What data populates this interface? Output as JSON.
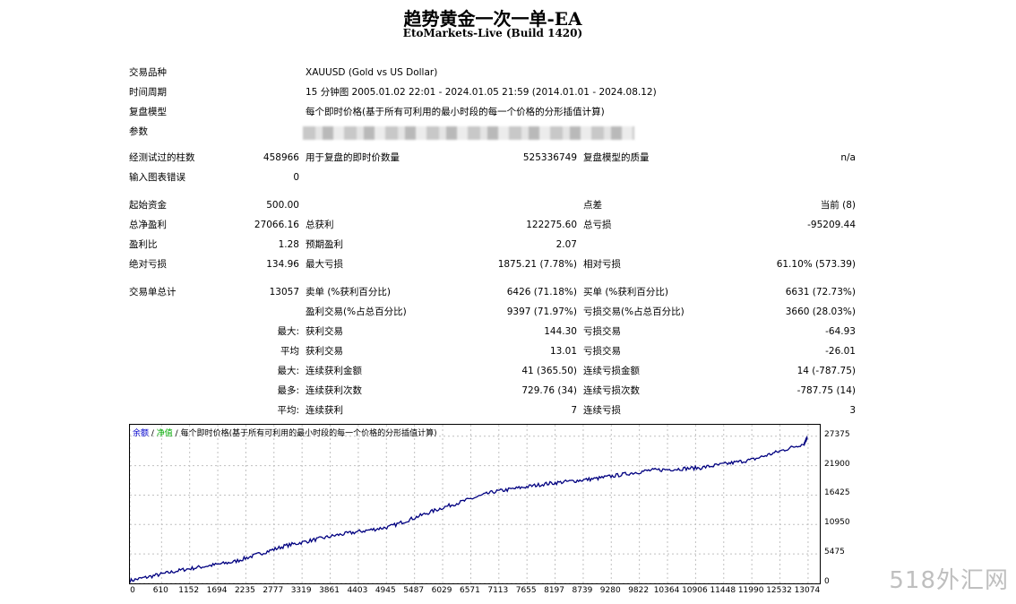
{
  "report": {
    "title": "趋势黄金一次一单-EA",
    "subtitle": "EtoMarkets-Live (Build 1420)"
  },
  "info": {
    "symbol_label": "交易品种",
    "symbol_value": "XAUUSD (Gold vs US Dollar)",
    "period_label": "时间周期",
    "period_value": "15 分钟图 2005.01.02 22:01 - 2024.01.05 21:59 (2014.01.01 - 2024.08.12)",
    "model_label": "复盘模型",
    "model_value": "每个即时价格(基于所有可利用的最小时段的每一个价格的分形插值计算)",
    "params_label": "参数"
  },
  "stats": {
    "bars_label": "经测试过的柱数",
    "bars_value": "458966",
    "ticks_label": "用于复盘的即时价数量",
    "ticks_value": "525336749",
    "quality_label": "复盘模型的质量",
    "quality_value": "n/a",
    "errors_label": "输入图表错误",
    "errors_value": "0",
    "deposit_label": "起始资金",
    "deposit_value": "500.00",
    "spread_label": "点差",
    "spread_value": "当前 (8)",
    "net_profit_label": "总净盈利",
    "net_profit_value": "27066.16",
    "gross_profit_label": "总获利",
    "gross_profit_value": "122275.60",
    "gross_loss_label": "总亏损",
    "gross_loss_value": "-95209.44",
    "profit_factor_label": "盈利比",
    "profit_factor_value": "1.28",
    "expected_payoff_label": "预期盈利",
    "expected_payoff_value": "2.07",
    "abs_dd_label": "绝对亏损",
    "abs_dd_value": "134.96",
    "max_dd_label": "最大亏损",
    "max_dd_value": "1875.21 (7.78%)",
    "rel_dd_label": "相对亏损",
    "rel_dd_value": "61.10% (573.39)",
    "total_trades_label": "交易单总计",
    "total_trades_value": "13057",
    "short_label": "卖单 (%获利百分比)",
    "short_value": "6426 (71.18%)",
    "long_label": "买单 (%获利百分比)",
    "long_value": "6631 (72.73%)",
    "profit_trades_label": "盈利交易(%占总百分比)",
    "profit_trades_value": "9397 (71.97%)",
    "loss_trades_label": "亏损交易(%占总百分比)",
    "loss_trades_value": "3660 (28.03%)",
    "largest_prefix": "最大:",
    "largest_profit_label": "获利交易",
    "largest_profit_value": "144.30",
    "largest_loss_label": "亏损交易",
    "largest_loss_value": "-64.93",
    "average_prefix": "平均",
    "avg_profit_label": "获利交易",
    "avg_profit_value": "13.01",
    "avg_loss_label": "亏损交易",
    "avg_loss_value": "-26.01",
    "max_prefix": "最大:",
    "max_cons_wins_label": "连续获利金额",
    "max_cons_wins_value": "41 (365.50)",
    "max_cons_losses_label": "连续亏损金额",
    "max_cons_losses_value": "14 (-787.75)",
    "maximal_prefix": "最多:",
    "maximal_cons_profit_label": "连续获利次数",
    "maximal_cons_profit_value": "729.76 (34)",
    "maximal_cons_loss_label": "连续亏损次数",
    "maximal_cons_loss_value": "-787.75 (14)",
    "avg2_prefix": "平均:",
    "avg_cons_wins_label": "连续获利",
    "avg_cons_wins_value": "7",
    "avg_cons_losses_label": "连续亏损",
    "avg_cons_losses_value": "3"
  },
  "chart_legend": {
    "balance": "余额",
    "sep1": " / ",
    "equity": "净值",
    "sep2": " / ",
    "model": "每个即时价格(基于所有可利用的最小时段的每一个价格的分形插值计算)"
  },
  "chart_data": {
    "type": "line",
    "series": [
      {
        "name": "余额",
        "color": "#000080",
        "points": [
          [
            0,
            500
          ],
          [
            1000,
            2500
          ],
          [
            2000,
            4000
          ],
          [
            3000,
            7000
          ],
          [
            4000,
            9000
          ],
          [
            5000,
            10500
          ],
          [
            6000,
            14000
          ],
          [
            7000,
            17000
          ],
          [
            8000,
            18500
          ],
          [
            9000,
            19500
          ],
          [
            10000,
            21000
          ],
          [
            11000,
            21500
          ],
          [
            12000,
            23000
          ],
          [
            13000,
            26000
          ],
          [
            13057,
            27066
          ]
        ]
      }
    ],
    "x_ticks": [
      "0",
      "610",
      "1152",
      "1694",
      "2235",
      "2777",
      "3319",
      "3861",
      "4403",
      "4945",
      "5487",
      "6029",
      "6571",
      "7113",
      "7655",
      "8197",
      "8739",
      "9280",
      "9822",
      "10364",
      "10906",
      "11448",
      "11990",
      "12532",
      "13074"
    ],
    "y_ticks": [
      "27375",
      "21900",
      "16425",
      "10950",
      "5475",
      "0"
    ],
    "xlim": [
      0,
      13300
    ],
    "ylim": [
      0,
      29500
    ],
    "grid": true
  },
  "watermark": "518外汇网"
}
